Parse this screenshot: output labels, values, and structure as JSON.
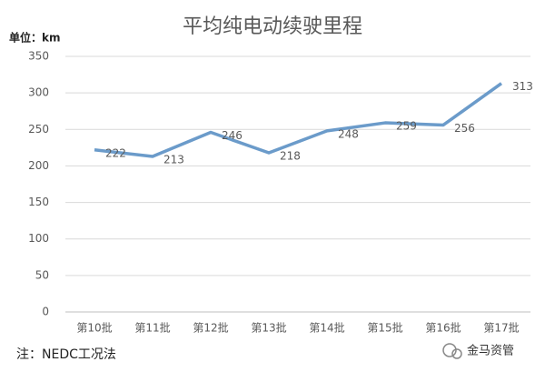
{
  "chart_data": {
    "type": "line",
    "title": "平均纯电动续驶里程",
    "y_unit": "单位：km",
    "categories": [
      "第10批",
      "第11批",
      "第12批",
      "第13批",
      "第14批",
      "第15批",
      "第16批",
      "第17批"
    ],
    "series": [
      {
        "color": "#6b9bca",
        "values": [
          222,
          213,
          246,
          218,
          248,
          259,
          256,
          313
        ]
      }
    ],
    "ylim": [
      0,
      350
    ],
    "yticks": [
      0,
      50,
      100,
      150,
      200,
      250,
      300,
      350
    ],
    "grid": true,
    "note": "注：NEDC工况法",
    "watermark": "金马资管"
  }
}
